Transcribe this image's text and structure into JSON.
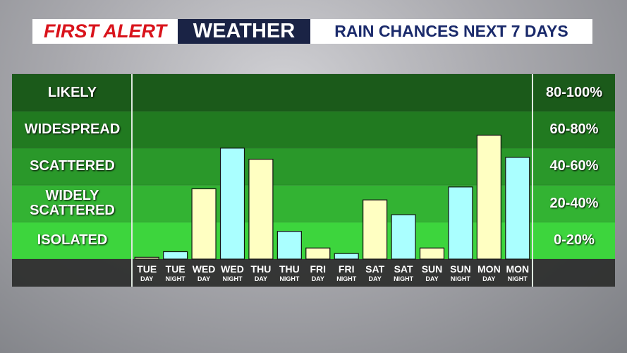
{
  "header": {
    "brand": "FIRST ALERT",
    "section": "WEATHER",
    "title": "RAIN CHANCES NEXT 7 DAYS"
  },
  "chart_data": {
    "type": "bar",
    "categories": [
      "TUE",
      "TUE",
      "WED",
      "WED",
      "THU",
      "THU",
      "FRI",
      "FRI",
      "SAT",
      "SAT",
      "SUN",
      "SUN",
      "MON",
      "MON"
    ],
    "periods": [
      "DAY",
      "NIGHT",
      "DAY",
      "NIGHT",
      "DAY",
      "NIGHT",
      "DAY",
      "NIGHT",
      "DAY",
      "NIGHT",
      "DAY",
      "NIGHT",
      "DAY",
      "NIGHT"
    ],
    "values": [
      1,
      4,
      38,
      60,
      54,
      15,
      6,
      3,
      32,
      24,
      6,
      39,
      67,
      55
    ],
    "colors": [
      "#ffffc2",
      "#aaffff",
      "#ffffc2",
      "#aaffff",
      "#ffffc2",
      "#aaffff",
      "#ffffc2",
      "#aaffff",
      "#ffffc2",
      "#aaffff",
      "#ffffc2",
      "#aaffff",
      "#ffffc2",
      "#aaffff"
    ],
    "ylim": [
      0,
      100
    ],
    "yticks": [
      0,
      20,
      40,
      60,
      80,
      100
    ],
    "bands": [
      {
        "name": "ISOLATED",
        "range": "0-20%",
        "color": "#3dd53d"
      },
      {
        "name": "WIDELY SCATTERED",
        "range": "20-40%",
        "color": "#33b333"
      },
      {
        "name": "SCATTERED",
        "range": "40-60%",
        "color": "#2a982a"
      },
      {
        "name": "WIDESPREAD",
        "range": "60-80%",
        "color": "#217a20"
      },
      {
        "name": "LIKELY",
        "range": "80-100%",
        "color": "#1b5a1a"
      }
    ]
  }
}
